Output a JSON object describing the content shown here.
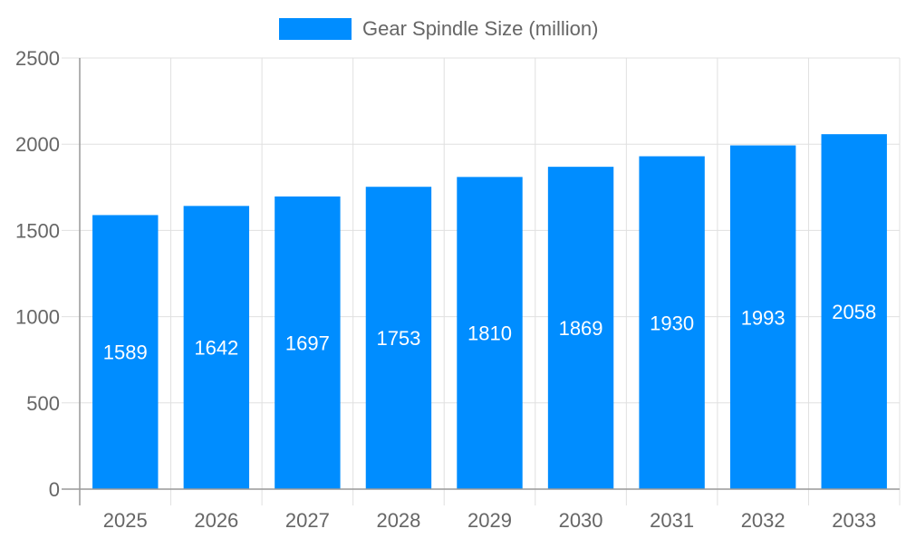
{
  "chart_data": {
    "type": "bar",
    "title": "",
    "xlabel": "",
    "ylabel": "",
    "categories": [
      "2025",
      "2026",
      "2027",
      "2028",
      "2029",
      "2030",
      "2031",
      "2032",
      "2033"
    ],
    "series": [
      {
        "name": "Gear Spindle Size (million)",
        "values": [
          1589,
          1642,
          1697,
          1753,
          1810,
          1869,
          1930,
          1993,
          2058
        ],
        "color": "#008dff"
      }
    ],
    "ylim": [
      0,
      2500
    ],
    "yticks": [
      0,
      500,
      1000,
      1500,
      2000,
      2500
    ],
    "grid": true,
    "legend": "top-center",
    "data_labels": true
  }
}
